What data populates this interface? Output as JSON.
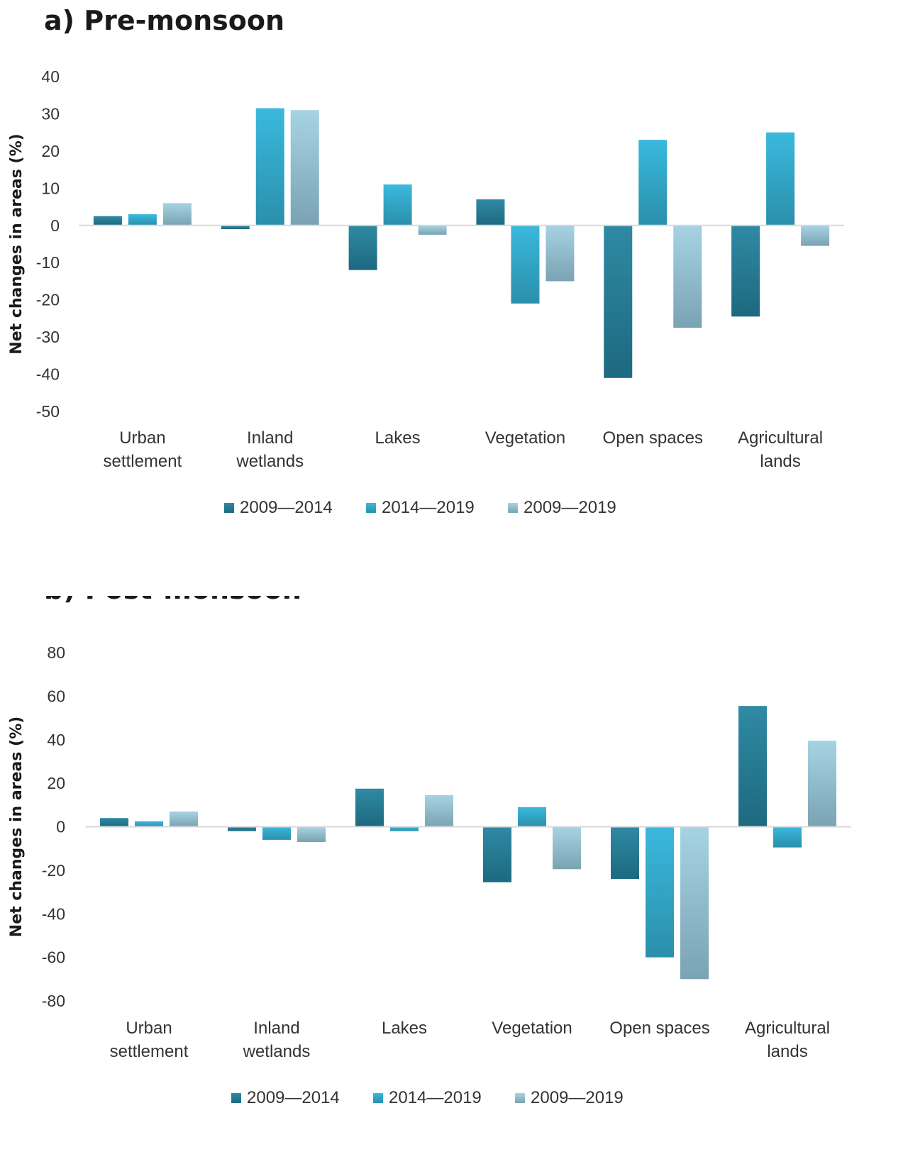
{
  "chart_data": [
    {
      "type": "bar",
      "title": "a) Pre-monsoon",
      "ylabel": "Net changes  in areas  (%)",
      "xlabel": "",
      "ylim": [
        -50,
        40
      ],
      "yticks": [
        "40",
        "30",
        "20",
        "10",
        "0",
        "-10",
        "-20",
        "-30",
        "-40",
        "-50"
      ],
      "categories": [
        [
          "Urban",
          "settlement"
        ],
        [
          "Inland",
          "wetlands"
        ],
        [
          "Lakes"
        ],
        [
          "Vegetation"
        ],
        [
          "Open spaces"
        ],
        [
          "Agricultural",
          "lands"
        ]
      ],
      "series": [
        {
          "name": "2009—2014",
          "values": [
            2.5,
            -1,
            -12,
            7,
            -41,
            -24.5
          ]
        },
        {
          "name": "2014—2019",
          "values": [
            3,
            31.5,
            11,
            -21,
            23,
            25
          ]
        },
        {
          "name": "2009—2019",
          "values": [
            6,
            31,
            -2.5,
            -15,
            -27.5,
            -5.5
          ]
        }
      ],
      "legend_position": "bottom"
    },
    {
      "type": "bar",
      "title": "b) Post-monsoon",
      "ylabel": "Net changes  in areas  (%)",
      "xlabel": "",
      "ylim": [
        -80,
        80
      ],
      "yticks": [
        "80",
        "60",
        "40",
        "20",
        "0",
        "-20",
        "-40",
        "-60",
        "-80"
      ],
      "categories": [
        [
          "Urban",
          "settlement"
        ],
        [
          "Inland",
          "wetlands"
        ],
        [
          "Lakes"
        ],
        [
          "Vegetation"
        ],
        [
          "Open spaces"
        ],
        [
          "Agricultural",
          "lands"
        ]
      ],
      "series": [
        {
          "name": "2009—2014",
          "values": [
            4,
            -2,
            17.5,
            -25.5,
            -24,
            55.5
          ]
        },
        {
          "name": "2014—2019",
          "values": [
            2.5,
            -6,
            -2,
            9,
            -60,
            -9.5
          ]
        },
        {
          "name": "2009—2019",
          "values": [
            7,
            -7,
            14.5,
            -19.5,
            -70,
            39.5
          ]
        }
      ],
      "legend_position": "bottom"
    }
  ],
  "colors": {
    "s1_top": "#2f8aa3",
    "s1_bottom": "#1d6980",
    "s2_top": "#3ab9dd",
    "s2_bottom": "#2a8fab",
    "s3_top": "#a6d3e3",
    "s3_bottom": "#7aa3b3",
    "axis": "#d9d9d9"
  }
}
